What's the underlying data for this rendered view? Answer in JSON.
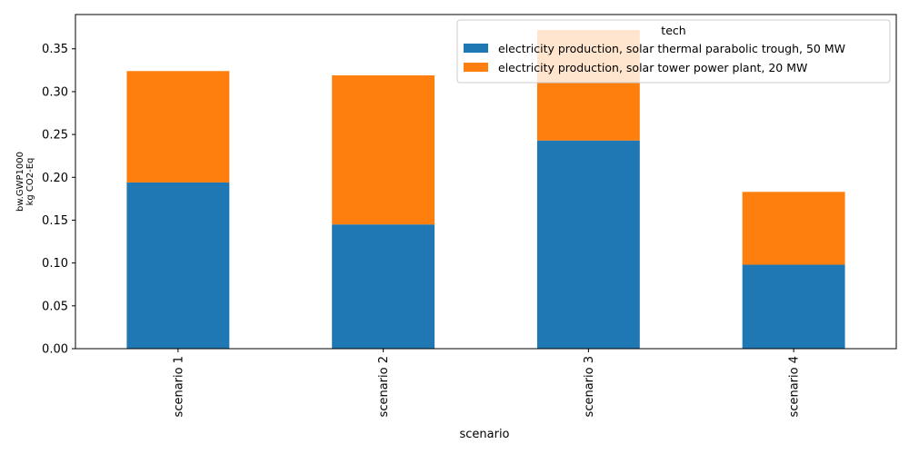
{
  "chart_data": {
    "type": "bar",
    "stacked": true,
    "orientation": "vertical",
    "categories": [
      "scenario 1",
      "scenario 2",
      "scenario 3",
      "scenario 4"
    ],
    "series": [
      {
        "name": "electricity production, solar thermal parabolic trough, 50 MW",
        "color": "#1f77b4",
        "values": [
          0.194,
          0.145,
          0.243,
          0.098
        ]
      },
      {
        "name": "electricity production, solar tower power plant, 20 MW",
        "color": "#ff7f0e",
        "values": [
          0.13,
          0.174,
          0.129,
          0.085
        ]
      }
    ],
    "xlabel": "scenario",
    "ylabel_lines": [
      "bw.GWP1000",
      "kg CO2-Eq"
    ],
    "ylim": [
      0,
      0.39
    ],
    "yticks": [
      "0.00",
      "0.05",
      "0.10",
      "0.15",
      "0.20",
      "0.25",
      "0.30",
      "0.35"
    ],
    "legend": {
      "title": "tech",
      "placement": "top-right"
    },
    "grid": false,
    "xtick_rotation": "vertical"
  }
}
